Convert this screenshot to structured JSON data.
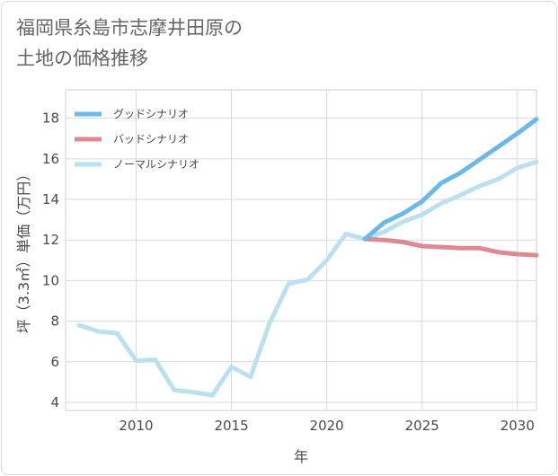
{
  "page": {
    "title_line1": "福岡県糸島市志摩井田原の",
    "title_line2": "土地の価格推移"
  },
  "chart_data": {
    "type": "line",
    "title": "福岡県糸島市志摩井田原の土地の価格推移",
    "xlabel": "年",
    "ylabel": "坪（3.3㎡）単価（万円）",
    "xlim": [
      2006.3,
      2031
    ],
    "ylim": [
      3.6,
      19.4
    ],
    "xticks": [
      2010,
      2015,
      2020,
      2025,
      2030
    ],
    "yticks": [
      4,
      6,
      8,
      10,
      12,
      14,
      16,
      18
    ],
    "grid": true,
    "legend_position": "top-left",
    "series": [
      {
        "name": "グッドシナリオ",
        "color": "#6cb9e8",
        "x": [
          2022,
          2023,
          2024,
          2025,
          2026,
          2027,
          2028,
          2029,
          2030,
          2031
        ],
        "values": [
          12.05,
          12.85,
          13.3,
          13.9,
          14.8,
          15.3,
          15.95,
          16.6,
          17.25,
          17.95
        ]
      },
      {
        "name": "バッドシナリオ",
        "color": "#de8a92",
        "x": [
          2022,
          2023,
          2024,
          2025,
          2026,
          2027,
          2028,
          2029,
          2030,
          2031
        ],
        "values": [
          12.05,
          12.0,
          11.9,
          11.7,
          11.65,
          11.6,
          11.6,
          11.4,
          11.3,
          11.25
        ]
      },
      {
        "name": "ノーマルシナリオ",
        "color": "#bde0ee",
        "x": [
          2007,
          2008,
          2009,
          2010,
          2011,
          2012,
          2013,
          2014,
          2015,
          2016,
          2017,
          2018,
          2019,
          2020,
          2021,
          2022,
          2023,
          2024,
          2025,
          2026,
          2027,
          2028,
          2029,
          2030,
          2031
        ],
        "values": [
          7.8,
          7.5,
          7.4,
          6.05,
          6.1,
          4.6,
          4.5,
          4.35,
          5.75,
          5.25,
          7.9,
          9.85,
          10.05,
          11.0,
          12.3,
          12.05,
          12.4,
          12.9,
          13.25,
          13.8,
          14.2,
          14.65,
          15.0,
          15.55,
          15.85
        ]
      }
    ]
  }
}
